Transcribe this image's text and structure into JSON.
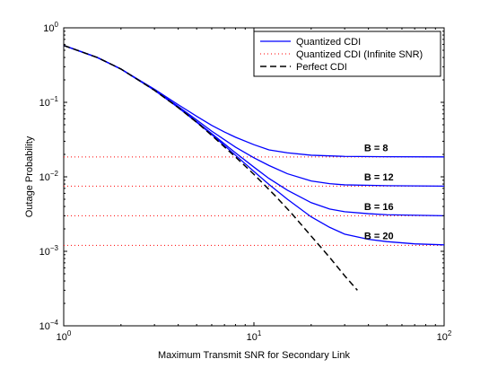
{
  "chart_data": {
    "type": "line",
    "xlabel": "Maximum Transmit SNR for Secondary Link",
    "ylabel": "Outage Probability",
    "x_scale": "log",
    "y_scale": "log",
    "xlim": [
      1,
      100
    ],
    "ylim": [
      0.0001,
      1
    ],
    "x_ticks": [
      {
        "value": 1,
        "base": "10",
        "exp": "0"
      },
      {
        "value": 10,
        "base": "10",
        "exp": "1"
      },
      {
        "value": 100,
        "base": "10",
        "exp": "2"
      }
    ],
    "y_ticks": [
      {
        "value": 0.0001,
        "base": "10",
        "exp": "−4"
      },
      {
        "value": 0.001,
        "base": "10",
        "exp": "−3"
      },
      {
        "value": 0.01,
        "base": "10",
        "exp": "−2"
      },
      {
        "value": 0.1,
        "base": "10",
        "exp": "−1"
      },
      {
        "value": 1,
        "base": "10",
        "exp": "0"
      }
    ],
    "grid": false,
    "legend_position": "top-right",
    "legend": [
      {
        "label": "Quantized CDI",
        "style": "solid",
        "color": "#0000ff"
      },
      {
        "label": "Quantized CDI (Infinite SNR)",
        "style": "dotted",
        "color": "#ff0000"
      },
      {
        "label": "Perfect CDI",
        "style": "dashed",
        "color": "#000000"
      }
    ],
    "colors": {
      "quantized": "#0000ff",
      "infinite": "#ff0000",
      "perfect": "#000000"
    },
    "perfect_cdi": {
      "x": [
        1,
        1.5,
        2,
        3,
        4,
        5,
        6,
        8,
        10,
        13,
        16,
        20,
        25,
        30,
        35
      ],
      "y": [
        0.58,
        0.4,
        0.28,
        0.145,
        0.085,
        0.054,
        0.036,
        0.0185,
        0.0108,
        0.0055,
        0.0031,
        0.0016,
        0.00083,
        0.00047,
        0.0003
      ]
    },
    "quantized_cdi": [
      {
        "label": "B = 8",
        "floor": 0.0185,
        "x": [
          1,
          1.5,
          2,
          3,
          4,
          5,
          6,
          7,
          8,
          10,
          12,
          15,
          20,
          30,
          50,
          100
        ],
        "y": [
          0.58,
          0.4,
          0.28,
          0.15,
          0.093,
          0.065,
          0.049,
          0.04,
          0.034,
          0.027,
          0.023,
          0.021,
          0.0195,
          0.0188,
          0.0186,
          0.0185
        ]
      },
      {
        "label": "B = 12",
        "floor": 0.0075,
        "x": [
          1,
          1.5,
          2,
          3,
          4,
          5,
          6,
          8,
          10,
          12,
          15,
          20,
          25,
          30,
          50,
          100
        ],
        "y": [
          0.58,
          0.4,
          0.28,
          0.147,
          0.088,
          0.058,
          0.041,
          0.025,
          0.018,
          0.0142,
          0.011,
          0.0088,
          0.0081,
          0.0078,
          0.0076,
          0.0075
        ]
      },
      {
        "label": "B = 16",
        "floor": 0.003,
        "x": [
          1,
          1.5,
          2,
          3,
          4,
          5,
          6,
          8,
          10,
          12,
          15,
          20,
          25,
          30,
          40,
          50,
          100
        ],
        "y": [
          0.58,
          0.4,
          0.28,
          0.146,
          0.086,
          0.055,
          0.038,
          0.021,
          0.0135,
          0.0095,
          0.0066,
          0.0045,
          0.0037,
          0.0034,
          0.0032,
          0.0031,
          0.003
        ]
      },
      {
        "label": "B = 20",
        "floor": 0.0012,
        "x": [
          1,
          1.5,
          2,
          3,
          4,
          5,
          6,
          8,
          10,
          12,
          15,
          20,
          25,
          30,
          40,
          50,
          70,
          100
        ],
        "y": [
          0.58,
          0.4,
          0.28,
          0.145,
          0.085,
          0.054,
          0.037,
          0.0195,
          0.0118,
          0.0079,
          0.005,
          0.0029,
          0.0021,
          0.0017,
          0.00145,
          0.00135,
          0.00126,
          0.00122
        ]
      }
    ],
    "annotations": [
      {
        "text": "B = 8",
        "x": 38,
        "y": 0.022
      },
      {
        "text": "B = 12",
        "x": 38,
        "y": 0.0089
      },
      {
        "text": "B = 16",
        "x": 38,
        "y": 0.0036
      },
      {
        "text": "B = 20",
        "x": 38,
        "y": 0.00145
      }
    ]
  }
}
